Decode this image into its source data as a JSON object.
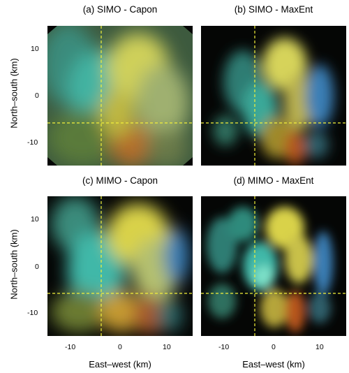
{
  "titles": {
    "a": "(a) SIMO - Capon",
    "b": "(b) SIMO - MaxEnt",
    "c": "(c) MIMO - Capon",
    "d": "(d) MIMO - MaxEnt"
  },
  "axes": {
    "ylabel": "North–south (km)",
    "xlabel": "East–west (km)",
    "y_ticks": [
      "10",
      "0",
      "-10"
    ],
    "x_ticks": [
      "-10",
      "0",
      "10"
    ],
    "x_range_km": [
      -15,
      15
    ],
    "y_range_km": [
      -15,
      15
    ]
  },
  "crosshair": {
    "x_km": -4,
    "y_km": -6,
    "color": "#f4f13a",
    "style": "dashed"
  },
  "colors": {
    "background": "#050605",
    "cyan": "#3fb8a8",
    "yellow": "#d9d24a",
    "orange": "#b7541e",
    "blue": "#3a7fb6"
  }
}
